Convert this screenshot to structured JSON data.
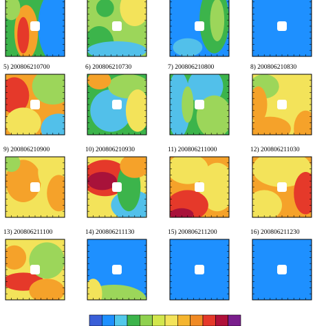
{
  "panels": [
    {
      "label": "5) 200806210700"
    },
    {
      "label": "6) 200806210730"
    },
    {
      "label": "7) 200806210800"
    },
    {
      "label": "8) 200806210830"
    },
    {
      "label": "9) 200806210900"
    },
    {
      "label": "10) 200806210930"
    },
    {
      "label": "11) 200806211000"
    },
    {
      "label": "12) 200806211030"
    },
    {
      "label": "13) 200806211100"
    },
    {
      "label": "14) 200806211130"
    },
    {
      "label": "15) 200806211200"
    },
    {
      "label": "16) 200806211230"
    }
  ]
}
